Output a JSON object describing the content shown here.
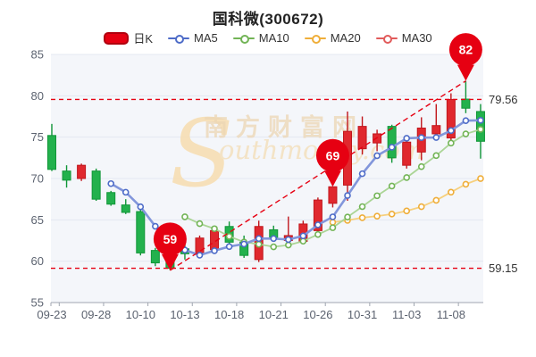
{
  "title": "国科微(300672)",
  "watermark": {
    "initial": "S",
    "cn": "南方财富网",
    "en": "outhmoney.com"
  },
  "legend": {
    "items": [
      {
        "label": "日K",
        "type": "kline",
        "color": "#e60012",
        "border": "#b0000e"
      },
      {
        "label": "MA5",
        "type": "line",
        "color": "#4e6cc8"
      },
      {
        "label": "MA10",
        "type": "line",
        "color": "#72b456"
      },
      {
        "label": "MA20",
        "type": "line",
        "color": "#efae3a"
      },
      {
        "label": "MA30",
        "type": "line",
        "color": "#e15b5b"
      }
    ]
  },
  "colors": {
    "up_fill": "#e0282e",
    "up_border": "#c0161c",
    "down_fill": "#23b14d",
    "down_border": "#119638",
    "ma5_line": "#8296db",
    "ma5_ring": "#4e6cc8",
    "ma10_line": "#abd596",
    "ma10_ring": "#72b456",
    "ma20_line": "#f6d07e",
    "ma20_ring": "#efae3a",
    "annotation": "#e60012",
    "plot_bg": "#f4f6fa",
    "grid": "#e4e8f1",
    "axis_text": "#5c6370",
    "axis_line": "#a0a6b0"
  },
  "chart_data": {
    "type": "candlestick",
    "title": "国科微(300672)",
    "ylim": [
      55,
      85
    ],
    "y_ticks": [
      85,
      80,
      75,
      70,
      65,
      60,
      55
    ],
    "x_tick_labels": [
      "09-23",
      "09-28",
      "10-10",
      "10-13",
      "10-18",
      "10-21",
      "10-26",
      "10-31",
      "11-03",
      "11-08"
    ],
    "x_tick_days": [
      0,
      3,
      6,
      9,
      12,
      15,
      18,
      21,
      24,
      27
    ],
    "dates": [
      "09-23",
      "09-26",
      "09-27",
      "09-28",
      "09-29",
      "09-30",
      "10-10",
      "10-11",
      "10-12",
      "10-13",
      "10-14",
      "10-17",
      "10-18",
      "10-19",
      "10-20",
      "10-21",
      "10-24",
      "10-25",
      "10-26",
      "10-27",
      "10-28",
      "10-31",
      "11-01",
      "11-02",
      "11-03",
      "11-04",
      "11-07",
      "11-08",
      "11-09",
      "11-10"
    ],
    "ohlc": [
      {
        "date": "09-23",
        "open": 75.2,
        "close": 71.1,
        "high": 76.6,
        "low": 70.9
      },
      {
        "date": "09-26",
        "open": 70.9,
        "close": 69.8,
        "high": 71.6,
        "low": 68.9
      },
      {
        "date": "09-27",
        "open": 70.0,
        "close": 71.6,
        "high": 71.8,
        "low": 69.7
      },
      {
        "date": "09-28",
        "open": 70.9,
        "close": 67.5,
        "high": 71.2,
        "low": 67.3
      },
      {
        "date": "09-29",
        "open": 68.3,
        "close": 66.9,
        "high": 68.5,
        "low": 66.7
      },
      {
        "date": "09-30",
        "open": 66.8,
        "close": 65.9,
        "high": 67.5,
        "low": 65.7
      },
      {
        "date": "10-10",
        "open": 66.0,
        "close": 61.0,
        "high": 66.2,
        "low": 60.7
      },
      {
        "date": "10-11",
        "open": 61.3,
        "close": 59.8,
        "high": 61.6,
        "low": 59.4
      },
      {
        "date": "10-12",
        "open": 60.0,
        "close": 59.15,
        "high": 60.3,
        "low": 58.9
      },
      {
        "date": "10-13",
        "open": 61.5,
        "close": 60.9,
        "high": 62.2,
        "low": 60.2
      },
      {
        "date": "10-14",
        "open": 61.0,
        "close": 62.8,
        "high": 63.1,
        "low": 60.7
      },
      {
        "date": "10-17",
        "open": 61.4,
        "close": 63.7,
        "high": 64.0,
        "low": 61.1
      },
      {
        "date": "10-18",
        "open": 64.2,
        "close": 62.3,
        "high": 64.8,
        "low": 62.0
      },
      {
        "date": "10-19",
        "open": 62.3,
        "close": 60.7,
        "high": 63.1,
        "low": 60.4
      },
      {
        "date": "10-20",
        "open": 60.2,
        "close": 64.2,
        "high": 64.9,
        "low": 59.9
      },
      {
        "date": "10-21",
        "open": 63.8,
        "close": 62.8,
        "high": 64.3,
        "low": 62.5
      },
      {
        "date": "10-24",
        "open": 62.5,
        "close": 63.1,
        "high": 65.4,
        "low": 62.2
      },
      {
        "date": "10-25",
        "open": 62.4,
        "close": 64.5,
        "high": 64.9,
        "low": 62.1
      },
      {
        "date": "10-26",
        "open": 63.7,
        "close": 67.4,
        "high": 67.7,
        "low": 63.3
      },
      {
        "date": "10-27",
        "open": 67.0,
        "close": 69.0,
        "high": 69.0,
        "low": 66.5
      },
      {
        "date": "10-28",
        "open": 69.2,
        "close": 75.7,
        "high": 78.1,
        "low": 67.3
      },
      {
        "date": "10-31",
        "open": 73.6,
        "close": 76.3,
        "high": 77.5,
        "low": 72.9
      },
      {
        "date": "11-01",
        "open": 74.3,
        "close": 75.4,
        "high": 75.9,
        "low": 73.3
      },
      {
        "date": "11-02",
        "open": 76.3,
        "close": 72.5,
        "high": 76.5,
        "low": 71.9
      },
      {
        "date": "11-03",
        "open": 71.6,
        "close": 74.4,
        "high": 75.0,
        "low": 71.2
      },
      {
        "date": "11-04",
        "open": 73.2,
        "close": 76.1,
        "high": 77.4,
        "low": 72.2
      },
      {
        "date": "11-07",
        "open": 75.4,
        "close": 76.4,
        "high": 79.0,
        "low": 74.8
      },
      {
        "date": "11-08",
        "open": 74.9,
        "close": 79.56,
        "high": 80.3,
        "low": 74.3
      },
      {
        "date": "11-09",
        "open": 79.6,
        "close": 78.5,
        "high": 81.8,
        "low": 77.9
      },
      {
        "date": "11-10",
        "open": 78.1,
        "close": 74.5,
        "high": 79.0,
        "low": 72.4
      }
    ],
    "series": [
      {
        "name": "MA5",
        "start_index": 4,
        "values": [
          69.38,
          68.34,
          66.58,
          64.22,
          62.55,
          61.35,
          60.73,
          61.27,
          61.77,
          62.08,
          62.74,
          62.74,
          62.62,
          63.06,
          64.4,
          65.36,
          67.94,
          70.58,
          72.76,
          73.78,
          74.86,
          74.94,
          74.96,
          75.79,
          76.99,
          77.03
        ]
      },
      {
        "name": "MA10",
        "start_index": 9,
        "values": [
          65.37,
          64.54,
          63.93,
          63.0,
          62.32,
          62.05,
          61.74,
          61.95,
          62.42,
          63.24,
          64.05,
          65.34,
          66.6,
          67.91,
          69.09,
          70.11,
          71.44,
          72.77,
          74.28,
          75.39,
          75.94
        ]
      },
      {
        "name": "MA20",
        "start_index": 19,
        "values": [
          64.71,
          64.94,
          65.26,
          65.45,
          65.7,
          66.08,
          66.59,
          67.36,
          68.35,
          69.31,
          69.99
        ]
      }
    ],
    "annotations": {
      "hlines": [
        {
          "value": 79.56,
          "label": "79.56"
        },
        {
          "value": 59.15,
          "label": "59.15"
        }
      ],
      "trendline": {
        "from": {
          "day": 8,
          "price": 58.9
        },
        "to": {
          "day": 28,
          "price": 81.8
        }
      },
      "markers": [
        {
          "day": 8,
          "date": "10-12",
          "label": "59",
          "price": 58.9
        },
        {
          "day": 19,
          "date": "10-27",
          "label": "69",
          "price": 69.0
        },
        {
          "day": 28,
          "date": "11-09",
          "label": "82",
          "price": 81.8
        }
      ]
    },
    "legend_position": "top",
    "grid": true
  }
}
